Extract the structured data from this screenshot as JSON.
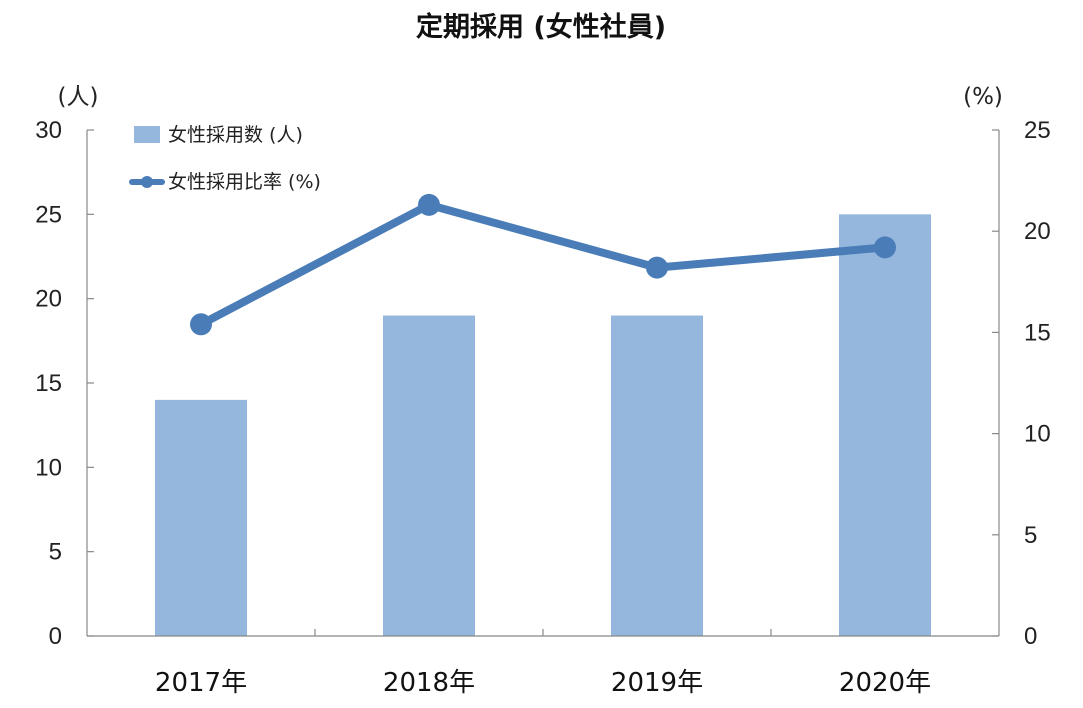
{
  "chart_data": {
    "type": "bar",
    "title": "定期採用 (女性社員)",
    "categories": [
      "2017年",
      "2018年",
      "2019年",
      "2020年"
    ],
    "y_left": {
      "unit_label": "(人)",
      "range": [
        0,
        30
      ],
      "ticks": [
        "0",
        "5",
        "10",
        "15",
        "20",
        "25",
        "30"
      ]
    },
    "y_right": {
      "unit_label": "(%)",
      "range": [
        0,
        25
      ],
      "ticks": [
        "0",
        "5",
        "10",
        "15",
        "20",
        "25"
      ]
    },
    "series": [
      {
        "name": "女性採用数 (人)",
        "type": "bar",
        "axis": "left",
        "values": [
          14,
          19,
          19,
          25
        ],
        "color": "#95b7de"
      },
      {
        "name": "女性採用比率 (%)",
        "type": "line",
        "axis": "right",
        "values": [
          15.4,
          21.3,
          18.2,
          19.2
        ],
        "color": "#4a7db8"
      }
    ],
    "legend_position": "top-left",
    "grid": false
  }
}
